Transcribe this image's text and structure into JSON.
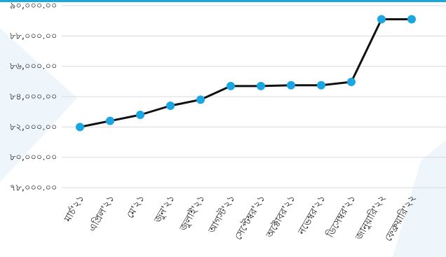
{
  "chart_data": {
    "type": "line",
    "title": "",
    "xlabel": "",
    "ylabel": "",
    "categories": [
      "মার্চ'২১",
      "এপ্রিল'২১",
      "মে'২১",
      "জুন'২১",
      "জুলাই'২১",
      "আগস্ট'২১",
      "সেপ্টেম্বর'২১",
      "অক্টোবর'২১",
      "নভেম্বর'২১",
      "ডিসেম্বর'২১",
      "জানুয়ারি'২২",
      "ফেব্রুয়ারি'২২"
    ],
    "values": [
      82000,
      82400,
      82800,
      83400,
      83800,
      84700,
      84700,
      84750,
      84750,
      84970,
      89100,
      89100
    ],
    "ylim": [
      78000,
      90000
    ],
    "yticks": [
      78000,
      80000,
      82000,
      84000,
      86000,
      88000,
      90000
    ],
    "ytick_labels": [
      "৭৮,০০০.০০",
      "৮০,০০০.০০",
      "৮২,০০০.০০",
      "৮৪,০০০.০০",
      "৮৬,০০০.০০",
      "৮৮,০০০.০০",
      "৯০,০০০.০০"
    ],
    "grid": true,
    "legend": false,
    "colors": {
      "line": "#111111",
      "marker": "#1aa6e0",
      "grid": "#d9d9d9",
      "accent": "#1ba8d6"
    }
  }
}
